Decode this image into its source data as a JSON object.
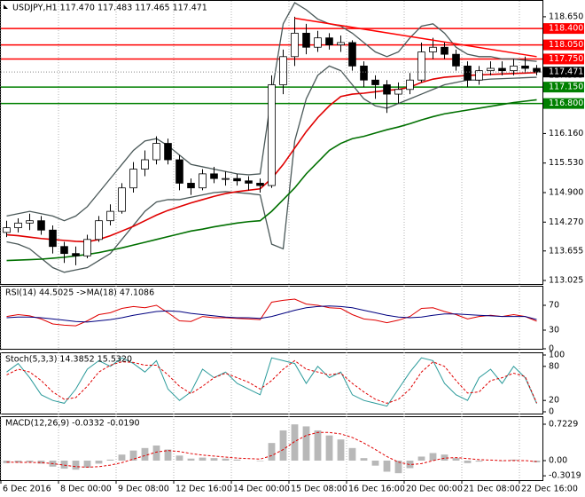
{
  "chart_data": {
    "type": "candlestick",
    "title": "USDJPY,H1  117.470 117.483 117.465 117.471",
    "categories": [
      "6 Dec 2016",
      null,
      null,
      null,
      null,
      "8 Dec 00:00",
      null,
      null,
      null,
      null,
      "9 Dec 08:00",
      null,
      null,
      null,
      null,
      "12 Dec 16:00",
      null,
      null,
      null,
      null,
      "14 Dec 00:00",
      null,
      null,
      null,
      null,
      "15 Dec 08:00",
      null,
      null,
      null,
      null,
      "16 Dec 16:00",
      null,
      null,
      null,
      null,
      "20 Dec 00:00",
      null,
      null,
      null,
      null,
      "21 Dec 08:00",
      null,
      null,
      null,
      null,
      "22 Dec 16:00",
      null
    ],
    "open": [
      114.05,
      114.15,
      114.25,
      114.3,
      114.1,
      113.75,
      113.6,
      113.55,
      113.9,
      114.3,
      114.5,
      115.0,
      115.4,
      115.6,
      115.95,
      115.6,
      115.1,
      115.0,
      115.3,
      115.2,
      115.2,
      115.15,
      115.1,
      115.05,
      117.2,
      117.8,
      118.3,
      118.0,
      118.2,
      118.05,
      118.1,
      117.6,
      117.3,
      117.2,
      117.0,
      117.1,
      117.3,
      117.9,
      118.0,
      117.85,
      117.6,
      117.3,
      117.5,
      117.55,
      117.5,
      117.6,
      117.55
    ],
    "high": [
      114.3,
      114.35,
      114.45,
      114.4,
      114.2,
      113.85,
      113.75,
      114.0,
      114.4,
      114.65,
      115.1,
      115.55,
      115.8,
      116.1,
      116.05,
      115.7,
      115.2,
      115.4,
      115.45,
      115.35,
      115.3,
      115.25,
      115.2,
      117.4,
      117.95,
      118.65,
      118.5,
      118.35,
      118.3,
      118.25,
      118.15,
      117.7,
      117.4,
      117.3,
      117.25,
      117.45,
      118.1,
      118.2,
      118.1,
      117.95,
      117.7,
      117.6,
      117.7,
      117.7,
      117.75,
      117.8,
      117.62
    ],
    "low": [
      113.95,
      114.05,
      114.1,
      114.0,
      113.6,
      113.4,
      113.35,
      113.5,
      113.85,
      114.2,
      114.45,
      114.9,
      115.25,
      115.5,
      115.5,
      114.95,
      114.85,
      114.95,
      115.1,
      115.05,
      115.05,
      114.95,
      114.9,
      115.0,
      117.0,
      117.6,
      117.85,
      117.9,
      117.95,
      117.9,
      117.5,
      117.15,
      116.9,
      116.6,
      116.8,
      117.0,
      117.25,
      117.75,
      117.75,
      117.5,
      117.15,
      117.2,
      117.4,
      117.4,
      117.4,
      117.45,
      117.4
    ],
    "close": [
      114.15,
      114.25,
      114.3,
      114.1,
      113.75,
      113.6,
      113.55,
      113.9,
      114.3,
      114.5,
      115.0,
      115.4,
      115.6,
      115.95,
      115.6,
      115.1,
      115.0,
      115.3,
      115.2,
      115.2,
      115.15,
      115.1,
      115.05,
      117.2,
      117.8,
      118.3,
      118.0,
      118.2,
      118.05,
      118.1,
      117.6,
      117.3,
      117.2,
      117.0,
      117.1,
      117.3,
      117.9,
      118.0,
      117.85,
      117.6,
      117.3,
      117.5,
      117.55,
      117.5,
      117.6,
      117.55,
      117.47
    ],
    "last_price": 117.471,
    "ylim": [
      112.95,
      118.97
    ],
    "yticks": [
      {
        "value": 118.65,
        "label": "118.650"
      },
      {
        "value": 118.02,
        "label": "118.020"
      },
      {
        "value": 117.395,
        "label": "117.395"
      },
      {
        "value": 116.78,
        "label": "116.780"
      },
      {
        "value": 116.16,
        "label": "116.160"
      },
      {
        "value": 115.53,
        "label": "115.530"
      },
      {
        "value": 114.9,
        "label": "114.900"
      },
      {
        "value": 114.27,
        "label": "114.270"
      },
      {
        "value": 113.655,
        "label": "113.655"
      },
      {
        "value": 113.025,
        "label": "113.025"
      }
    ],
    "grid": true,
    "overlays": [
      {
        "color": "#4a5858",
        "values": [
          114.4,
          114.45,
          114.5,
          114.45,
          114.4,
          114.3,
          114.4,
          114.6,
          114.9,
          115.2,
          115.5,
          115.8,
          116.0,
          116.05,
          115.9,
          115.7,
          115.5,
          115.45,
          115.4,
          115.35,
          115.3,
          115.28,
          115.3,
          117.0,
          118.5,
          118.95,
          118.8,
          118.6,
          118.5,
          118.45,
          118.3,
          118.1,
          117.9,
          117.8,
          117.9,
          118.2,
          118.45,
          118.5,
          118.3,
          118.0,
          117.85,
          117.8,
          117.8,
          117.75,
          117.75,
          117.72,
          117.7
        ]
      },
      {
        "color": "#4a5858",
        "values": [
          113.85,
          113.8,
          113.7,
          113.5,
          113.3,
          113.2,
          113.25,
          113.3,
          113.45,
          113.6,
          113.9,
          114.2,
          114.5,
          114.7,
          114.75,
          114.75,
          114.8,
          114.85,
          114.9,
          114.92,
          114.9,
          114.88,
          114.85,
          113.8,
          113.7,
          116.0,
          116.9,
          117.4,
          117.6,
          117.5,
          117.2,
          116.9,
          116.75,
          116.7,
          116.8,
          116.9,
          117.0,
          117.1,
          117.2,
          117.25,
          117.3,
          117.3,
          117.32,
          117.33,
          117.34,
          117.35,
          117.36
        ]
      },
      {
        "color": "#e00000",
        "values": [
          114.0,
          113.98,
          113.95,
          113.92,
          113.9,
          113.88,
          113.86,
          113.85,
          113.9,
          113.98,
          114.08,
          114.18,
          114.3,
          114.42,
          114.52,
          114.6,
          114.68,
          114.75,
          114.82,
          114.88,
          114.92,
          114.95,
          114.98,
          115.2,
          115.5,
          115.85,
          116.2,
          116.5,
          116.75,
          116.95,
          117.0,
          117.02,
          117.05,
          117.08,
          117.1,
          117.15,
          117.25,
          117.32,
          117.36,
          117.38,
          117.4,
          117.41,
          117.42,
          117.43,
          117.44,
          117.45,
          117.46
        ]
      },
      {
        "color": "#007000",
        "values": [
          113.45,
          113.46,
          113.47,
          113.48,
          113.5,
          113.52,
          113.55,
          113.58,
          113.62,
          113.67,
          113.72,
          113.78,
          113.84,
          113.9,
          113.96,
          114.02,
          114.08,
          114.12,
          114.17,
          114.21,
          114.25,
          114.28,
          114.3,
          114.5,
          114.75,
          115.0,
          115.3,
          115.55,
          115.8,
          115.95,
          116.05,
          116.1,
          116.17,
          116.24,
          116.3,
          116.37,
          116.45,
          116.52,
          116.58,
          116.62,
          116.66,
          116.7,
          116.74,
          116.78,
          116.82,
          116.85,
          116.88
        ]
      }
    ],
    "levels": [
      {
        "value": 118.4,
        "label": "118.400",
        "color": "#ff0000"
      },
      {
        "value": 118.05,
        "label": "118.050",
        "color": "#ff0000"
      },
      {
        "value": 117.75,
        "label": "117.750",
        "color": "#ff0000"
      },
      {
        "value": 117.15,
        "label": "117.150",
        "color": "#008000"
      },
      {
        "value": 116.8,
        "label": "116.800",
        "color": "#008000"
      }
    ],
    "trendline": {
      "color": "#ff0000",
      "index": [
        25,
        46
      ],
      "values": [
        118.62,
        117.8
      ]
    },
    "rsi": {
      "title": "RSI(14) 44.5025  ->MA(18) 47.1086",
      "ylim": [
        0,
        100
      ],
      "yticks": [
        70,
        30,
        0
      ],
      "series": [
        {
          "color": "#e00000",
          "values": [
            52,
            55,
            53,
            48,
            40,
            38,
            37,
            45,
            55,
            58,
            65,
            68,
            66,
            70,
            58,
            45,
            44,
            52,
            50,
            50,
            49,
            48,
            47,
            75,
            78,
            80,
            72,
            70,
            66,
            65,
            55,
            48,
            46,
            42,
            46,
            52,
            65,
            66,
            60,
            55,
            48,
            52,
            54,
            52,
            55,
            52,
            44.5
          ]
        },
        {
          "color": "#000080",
          "values": [
            50,
            51,
            51,
            50,
            48,
            46,
            44,
            43,
            45,
            47,
            50,
            54,
            57,
            60,
            61,
            60,
            57,
            55,
            53,
            51,
            50,
            50,
            49,
            52,
            57,
            62,
            66,
            68,
            69,
            68,
            66,
            62,
            58,
            54,
            51,
            50,
            51,
            54,
            56,
            56,
            55,
            54,
            53,
            52,
            52,
            52,
            47.1
          ]
        }
      ]
    },
    "stoch": {
      "title": "Stoch(5,3,3) 14.3852 15.5320",
      "ylim": [
        0,
        100
      ],
      "yticks": [
        100,
        80,
        20,
        0
      ],
      "series": [
        {
          "color": "#2a9a9a",
          "values": [
            70,
            85,
            60,
            30,
            20,
            15,
            40,
            75,
            90,
            80,
            95,
            85,
            70,
            90,
            40,
            20,
            35,
            75,
            60,
            70,
            50,
            40,
            30,
            95,
            90,
            85,
            50,
            80,
            60,
            70,
            30,
            20,
            15,
            10,
            40,
            70,
            95,
            90,
            50,
            30,
            20,
            60,
            75,
            50,
            80,
            60,
            14.4
          ]
        },
        {
          "color": "#e00000",
          "dashed": true,
          "values": [
            65,
            75,
            70,
            55,
            35,
            22,
            25,
            45,
            70,
            82,
            88,
            87,
            82,
            82,
            65,
            45,
            32,
            45,
            60,
            68,
            60,
            52,
            40,
            55,
            75,
            90,
            75,
            70,
            65,
            68,
            50,
            35,
            22,
            15,
            22,
            40,
            70,
            88,
            80,
            55,
            33,
            35,
            55,
            60,
            68,
            62,
            15.5
          ]
        }
      ]
    },
    "macd": {
      "title": "MACD(12,26,9) -0.0332 -0.0190",
      "ylim": [
        -0.388,
        0.864
      ],
      "yticks": [
        0.7229,
        {
          "value": 0,
          "label": "0.00"
        },
        -0.3019
      ],
      "histogram": {
        "color": "#b8b8b8",
        "values": [
          -0.05,
          -0.04,
          -0.03,
          -0.06,
          -0.12,
          -0.16,
          -0.18,
          -0.14,
          -0.06,
          0.02,
          0.12,
          0.2,
          0.25,
          0.3,
          0.22,
          0.1,
          0.04,
          0.06,
          0.05,
          0.04,
          0.02,
          0.0,
          -0.01,
          0.35,
          0.6,
          0.72,
          0.68,
          0.6,
          0.5,
          0.42,
          0.25,
          0.05,
          -0.1,
          -0.22,
          -0.25,
          -0.15,
          0.08,
          0.15,
          0.12,
          0.05,
          -0.05,
          -0.02,
          0.0,
          -0.01,
          0.02,
          0.0,
          -0.033
        ]
      },
      "series": [
        {
          "color": "#e00000",
          "dashed": true,
          "values": [
            -0.03,
            -0.035,
            -0.035,
            -0.04,
            -0.06,
            -0.09,
            -0.12,
            -0.13,
            -0.12,
            -0.09,
            -0.04,
            0.03,
            0.1,
            0.17,
            0.2,
            0.18,
            0.14,
            0.11,
            0.09,
            0.07,
            0.05,
            0.04,
            0.03,
            0.1,
            0.22,
            0.38,
            0.5,
            0.56,
            0.56,
            0.53,
            0.46,
            0.35,
            0.22,
            0.08,
            -0.03,
            -0.08,
            -0.06,
            0.0,
            0.05,
            0.06,
            0.04,
            0.02,
            0.01,
            0.0,
            0.0,
            0.0,
            -0.019
          ]
        }
      ]
    }
  }
}
